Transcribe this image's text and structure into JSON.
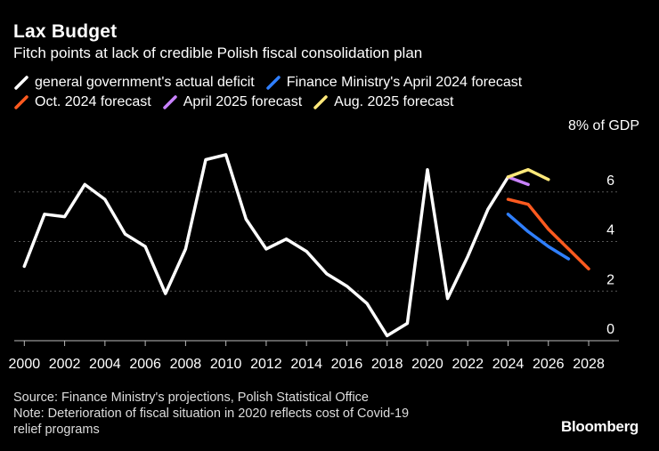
{
  "title": "Lax Budget",
  "subtitle": "Fitch points at lack of credible Polish fiscal consolidation plan",
  "footer": {
    "source": "Source: Finance Ministry's projections, Polish Statistical Office",
    "note_line1": "Note: Deterioration of fiscal situation in 2020 reflects cost of Covid-19",
    "note_line2": "relief programs"
  },
  "brand": "Bloomberg",
  "unit_label": "8% of GDP",
  "colors": {
    "background": "#000000",
    "grid": "#555555",
    "axis": "#bbbbbb"
  },
  "chart_data": {
    "type": "line",
    "title": "Lax Budget",
    "ylabel": "% of GDP",
    "xlim": [
      1999.5,
      2029.5
    ],
    "ylim": [
      0,
      8
    ],
    "xticks": [
      "2000",
      "2002",
      "2004",
      "2006",
      "2008",
      "2010",
      "2012",
      "2014",
      "2016",
      "2018",
      "2020",
      "2022",
      "2024",
      "2026",
      "2028"
    ],
    "yticks": [
      0,
      2,
      4,
      6
    ],
    "series": [
      {
        "name": "general government's actual deficit",
        "color": "#ffffff",
        "x": [
          2000,
          2001,
          2002,
          2003,
          2004,
          2005,
          2006,
          2007,
          2008,
          2009,
          2010,
          2011,
          2012,
          2013,
          2014,
          2015,
          2016,
          2017,
          2018,
          2019,
          2020,
          2021,
          2022,
          2023,
          2024
        ],
        "y": [
          3.0,
          5.1,
          5.0,
          6.3,
          5.7,
          4.3,
          3.8,
          1.9,
          3.7,
          7.3,
          7.5,
          4.9,
          3.7,
          4.1,
          3.6,
          2.7,
          2.2,
          1.5,
          0.2,
          0.7,
          6.9,
          1.7,
          3.4,
          5.3,
          6.6
        ]
      },
      {
        "name": "Finance Ministry's April 2024 forecast",
        "color": "#2f7fff",
        "x": [
          2024,
          2025,
          2026,
          2027
        ],
        "y": [
          5.1,
          4.4,
          3.8,
          3.3
        ]
      },
      {
        "name": "Oct. 2024 forecast",
        "color": "#ff5a1f",
        "x": [
          2024,
          2025,
          2026,
          2027,
          2028
        ],
        "y": [
          5.7,
          5.5,
          4.5,
          3.7,
          2.9
        ]
      },
      {
        "name": "April 2025 forecast",
        "color": "#c982ff",
        "x": [
          2024,
          2025
        ],
        "y": [
          6.6,
          6.3
        ]
      },
      {
        "name": "Aug. 2025 forecast",
        "color": "#ffe97a",
        "x": [
          2024,
          2025,
          2026
        ],
        "y": [
          6.6,
          6.9,
          6.5
        ]
      }
    ]
  }
}
